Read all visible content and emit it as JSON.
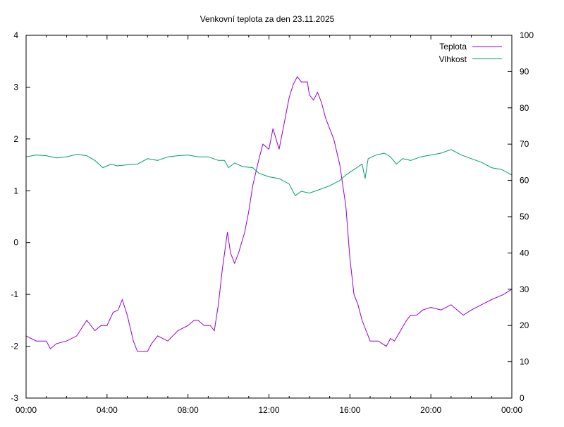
{
  "chart_data": {
    "type": "line",
    "title": "Venkovní teplota za den 23.11.2025",
    "x": {
      "ticks": [
        "00:00",
        "04:00",
        "08:00",
        "12:00",
        "16:00",
        "20:00",
        "00:00"
      ],
      "range_hours": [
        0,
        24
      ]
    },
    "y_left": {
      "range": [
        -3,
        4
      ],
      "ticks": [
        "4",
        "3",
        "2",
        "1",
        "0",
        "-1",
        "-2",
        "-3"
      ]
    },
    "y_right": {
      "range": [
        0,
        100
      ],
      "ticks": [
        "100",
        "90",
        "80",
        "70",
        "60",
        "50",
        "40",
        "30",
        "20",
        "10",
        "0"
      ]
    },
    "grid": false,
    "legend_position": "top-right",
    "legend": [
      {
        "label": "Teplota",
        "color": "#9400d3"
      },
      {
        "label": "Vlhkost",
        "color": "#009e73"
      }
    ],
    "series": [
      {
        "name": "Teplota",
        "axis": "left",
        "color": "#9400d3",
        "points": [
          [
            0.0,
            -1.8
          ],
          [
            0.5,
            -1.9
          ],
          [
            1.0,
            -1.9
          ],
          [
            1.2,
            -2.05
          ],
          [
            1.5,
            -1.95
          ],
          [
            2.0,
            -1.9
          ],
          [
            2.5,
            -1.8
          ],
          [
            3.0,
            -1.5
          ],
          [
            3.4,
            -1.7
          ],
          [
            3.7,
            -1.6
          ],
          [
            4.0,
            -1.6
          ],
          [
            4.3,
            -1.35
          ],
          [
            4.55,
            -1.3
          ],
          [
            4.75,
            -1.1
          ],
          [
            5.0,
            -1.4
          ],
          [
            5.3,
            -1.9
          ],
          [
            5.5,
            -2.1
          ],
          [
            6.0,
            -2.1
          ],
          [
            6.2,
            -1.95
          ],
          [
            6.5,
            -1.8
          ],
          [
            7.0,
            -1.9
          ],
          [
            7.5,
            -1.7
          ],
          [
            8.0,
            -1.6
          ],
          [
            8.3,
            -1.5
          ],
          [
            8.5,
            -1.5
          ],
          [
            8.8,
            -1.6
          ],
          [
            9.1,
            -1.6
          ],
          [
            9.3,
            -1.7
          ],
          [
            9.5,
            -1.2
          ],
          [
            9.7,
            -0.5
          ],
          [
            9.95,
            0.2
          ],
          [
            10.1,
            -0.2
          ],
          [
            10.3,
            -0.4
          ],
          [
            10.5,
            -0.2
          ],
          [
            10.8,
            0.2
          ],
          [
            11.0,
            0.6
          ],
          [
            11.2,
            1.1
          ],
          [
            11.5,
            1.6
          ],
          [
            11.7,
            1.9
          ],
          [
            12.0,
            1.8
          ],
          [
            12.2,
            2.2
          ],
          [
            12.5,
            1.8
          ],
          [
            12.8,
            2.4
          ],
          [
            13.0,
            2.8
          ],
          [
            13.2,
            3.05
          ],
          [
            13.4,
            3.2
          ],
          [
            13.6,
            3.1
          ],
          [
            13.9,
            3.1
          ],
          [
            14.0,
            2.85
          ],
          [
            14.2,
            2.75
          ],
          [
            14.4,
            2.9
          ],
          [
            14.6,
            2.7
          ],
          [
            14.8,
            2.4
          ],
          [
            15.0,
            2.2
          ],
          [
            15.2,
            2.0
          ],
          [
            15.5,
            1.5
          ],
          [
            15.8,
            0.7
          ],
          [
            16.0,
            -0.3
          ],
          [
            16.2,
            -1.0
          ],
          [
            16.4,
            -1.2
          ],
          [
            16.6,
            -1.5
          ],
          [
            16.8,
            -1.7
          ],
          [
            17.0,
            -1.9
          ],
          [
            17.4,
            -1.9
          ],
          [
            17.8,
            -2.0
          ],
          [
            18.0,
            -1.85
          ],
          [
            18.2,
            -1.9
          ],
          [
            18.5,
            -1.7
          ],
          [
            18.8,
            -1.5
          ],
          [
            19.0,
            -1.4
          ],
          [
            19.3,
            -1.4
          ],
          [
            19.6,
            -1.3
          ],
          [
            20.0,
            -1.25
          ],
          [
            20.5,
            -1.3
          ],
          [
            21.0,
            -1.2
          ],
          [
            21.3,
            -1.3
          ],
          [
            21.6,
            -1.4
          ],
          [
            22.0,
            -1.3
          ],
          [
            22.5,
            -1.2
          ],
          [
            23.0,
            -1.1
          ],
          [
            23.3,
            -1.05
          ],
          [
            23.6,
            -1.0
          ],
          [
            24.0,
            -0.9
          ]
        ]
      },
      {
        "name": "Vlhkost",
        "axis": "right",
        "color": "#009e73",
        "points": [
          [
            0.0,
            66.5
          ],
          [
            0.5,
            67.0
          ],
          [
            1.0,
            66.8
          ],
          [
            1.5,
            66.2
          ],
          [
            2.0,
            66.5
          ],
          [
            2.5,
            67.2
          ],
          [
            3.0,
            66.8
          ],
          [
            3.4,
            65.5
          ],
          [
            3.8,
            63.5
          ],
          [
            4.2,
            64.5
          ],
          [
            4.5,
            64.0
          ],
          [
            5.0,
            64.3
          ],
          [
            5.5,
            64.5
          ],
          [
            6.0,
            66.0
          ],
          [
            6.5,
            65.5
          ],
          [
            7.0,
            66.5
          ],
          [
            7.5,
            66.8
          ],
          [
            8.0,
            67.0
          ],
          [
            8.5,
            66.5
          ],
          [
            9.0,
            66.5
          ],
          [
            9.5,
            65.5
          ],
          [
            9.8,
            65.5
          ],
          [
            10.0,
            63.5
          ],
          [
            10.3,
            64.8
          ],
          [
            10.7,
            63.8
          ],
          [
            11.2,
            63.5
          ],
          [
            11.5,
            62.0
          ],
          [
            12.0,
            61.0
          ],
          [
            12.5,
            60.5
          ],
          [
            13.0,
            59.0
          ],
          [
            13.3,
            55.8
          ],
          [
            13.6,
            57.0
          ],
          [
            14.0,
            56.5
          ],
          [
            14.5,
            57.5
          ],
          [
            15.0,
            58.5
          ],
          [
            15.5,
            60.0
          ],
          [
            15.8,
            61.5
          ],
          [
            16.2,
            63.0
          ],
          [
            16.6,
            64.5
          ],
          [
            16.75,
            60.5
          ],
          [
            16.9,
            66.0
          ],
          [
            17.3,
            67.0
          ],
          [
            17.7,
            67.5
          ],
          [
            18.0,
            66.5
          ],
          [
            18.3,
            64.5
          ],
          [
            18.6,
            66.0
          ],
          [
            19.0,
            65.5
          ],
          [
            19.5,
            66.5
          ],
          [
            20.0,
            67.0
          ],
          [
            20.5,
            67.5
          ],
          [
            21.0,
            68.5
          ],
          [
            21.5,
            67.0
          ],
          [
            22.0,
            66.0
          ],
          [
            22.5,
            65.0
          ],
          [
            23.0,
            63.5
          ],
          [
            23.5,
            63.0
          ],
          [
            24.0,
            61.5
          ]
        ]
      }
    ]
  }
}
